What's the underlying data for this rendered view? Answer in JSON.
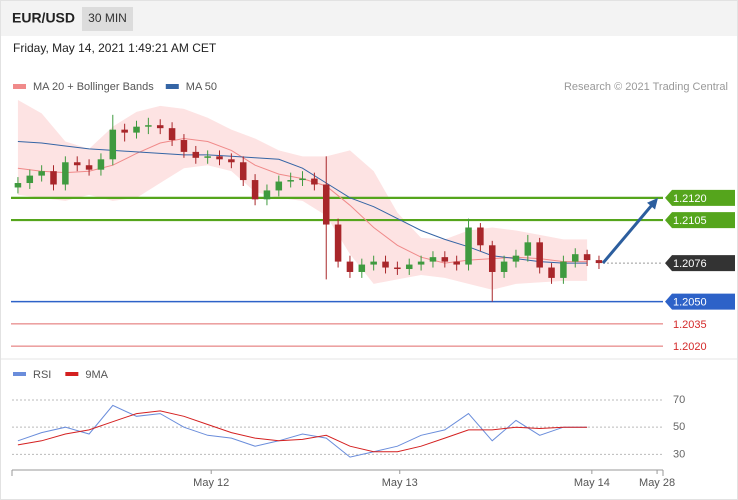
{
  "header": {
    "symbol": "EUR/USD",
    "interval": "30 MIN",
    "timestamp": "Friday, May 14, 2021 1:49:21 AM CET"
  },
  "chart_data": [
    {
      "type": "candlestick",
      "credit": "Research © 2021 Trading Central",
      "up_color": "#3f9a3f",
      "down_color": "#a8262a",
      "xlim": [
        -0.5,
        54.4
      ],
      "ylim": [
        1.2014,
        1.2186
      ],
      "x": [
        0,
        1,
        2,
        3,
        4,
        5,
        6,
        7,
        8,
        9,
        10,
        11,
        12,
        13,
        14,
        15,
        16,
        17,
        18,
        19,
        20,
        21,
        22,
        23,
        24,
        25,
        26,
        27,
        28,
        29,
        30,
        31,
        32,
        33,
        34,
        35,
        36,
        37,
        38,
        39,
        40,
        41,
        42,
        43,
        44,
        45,
        46,
        47,
        48,
        49
      ],
      "open": [
        1.2127,
        1.213,
        1.2135,
        1.2138,
        1.2129,
        1.2144,
        1.2142,
        1.2139,
        1.2146,
        1.2166,
        1.2164,
        1.2168,
        1.2169,
        1.2167,
        1.2159,
        1.2151,
        1.2147,
        1.2148,
        1.2146,
        1.2144,
        1.2132,
        1.2119,
        1.2125,
        1.2131,
        1.2132,
        1.2133,
        1.2129,
        1.2102,
        1.2077,
        1.207,
        1.2075,
        1.2077,
        1.2073,
        1.2072,
        1.2075,
        1.2077,
        1.208,
        1.2077,
        1.2075,
        1.21,
        1.2088,
        1.207,
        1.2077,
        1.2081,
        1.209,
        1.2073,
        1.2066,
        1.2077,
        1.2082,
        1.2078
      ],
      "high": [
        1.2134,
        1.2139,
        1.2142,
        1.2142,
        1.2148,
        1.2148,
        1.2146,
        1.215,
        1.2176,
        1.217,
        1.2172,
        1.2174,
        1.2173,
        1.2171,
        1.2163,
        1.2155,
        1.2152,
        1.2152,
        1.215,
        1.2148,
        1.2136,
        1.2129,
        1.2135,
        1.2137,
        1.2138,
        1.2137,
        1.2148,
        1.2106,
        1.2081,
        1.2079,
        1.2081,
        1.2081,
        1.2077,
        1.2079,
        1.2081,
        1.2084,
        1.2084,
        1.2081,
        1.2106,
        1.2103,
        1.2091,
        1.2081,
        1.2085,
        1.2095,
        1.2093,
        1.2076,
        1.2081,
        1.2086,
        1.2085,
        1.2081
      ],
      "low": [
        1.2123,
        1.2126,
        1.2131,
        1.2125,
        1.2125,
        1.2138,
        1.2135,
        1.2135,
        1.2142,
        1.2158,
        1.216,
        1.2163,
        1.2163,
        1.2155,
        1.2147,
        1.2143,
        1.2143,
        1.2142,
        1.214,
        1.2128,
        1.2115,
        1.2115,
        1.2121,
        1.2127,
        1.2128,
        1.2125,
        1.2065,
        1.2073,
        1.2066,
        1.2066,
        1.2071,
        1.2069,
        1.2068,
        1.2068,
        1.2071,
        1.2073,
        1.2073,
        1.2071,
        1.2071,
        1.2084,
        1.205,
        1.2066,
        1.2073,
        1.2077,
        1.2069,
        1.2062,
        1.2062,
        1.2073,
        1.2074,
        1.2072
      ],
      "close": [
        1.213,
        1.2135,
        1.2138,
        1.2129,
        1.2144,
        1.2142,
        1.2139,
        1.2146,
        1.2166,
        1.2164,
        1.2168,
        1.2169,
        1.2167,
        1.2159,
        1.2151,
        1.2147,
        1.2148,
        1.2146,
        1.2144,
        1.2132,
        1.2119,
        1.2125,
        1.2131,
        1.2132,
        1.2133,
        1.2129,
        1.2102,
        1.2077,
        1.207,
        1.2075,
        1.2077,
        1.2073,
        1.2072,
        1.2075,
        1.2077,
        1.208,
        1.2077,
        1.2075,
        1.21,
        1.2088,
        1.207,
        1.2077,
        1.2081,
        1.209,
        1.2073,
        1.2066,
        1.2077,
        1.2082,
        1.2078,
        1.2076
      ],
      "indicators": [
        {
          "name": "MA 20 + Bollinger Bands",
          "color": "#f08a8a",
          "band_color": "#fde3e3",
          "x": [
            0,
            2,
            4,
            6,
            8,
            10,
            12,
            14,
            16,
            18,
            20,
            22,
            24,
            26,
            28,
            30,
            32,
            34,
            36,
            38,
            40,
            42,
            44,
            46,
            48
          ],
          "values": [
            1.214,
            1.2138,
            1.2137,
            1.2138,
            1.2142,
            1.215,
            1.2157,
            1.216,
            1.2158,
            1.2152,
            1.2142,
            1.2136,
            1.2133,
            1.2128,
            1.2115,
            1.21,
            1.2088,
            1.208,
            1.2076,
            1.2078,
            1.2079,
            1.208,
            1.2079,
            1.2077,
            1.2077
          ],
          "upper": [
            1.2186,
            1.2177,
            1.2158,
            1.2153,
            1.2168,
            1.2178,
            1.2182,
            1.218,
            1.2174,
            1.2166,
            1.216,
            1.2152,
            1.2148,
            1.2148,
            1.2152,
            1.2138,
            1.211,
            1.2093,
            1.2092,
            1.2098,
            1.21,
            1.2098,
            1.2095,
            1.2092,
            1.2092
          ],
          "lower": [
            1.2122,
            1.212,
            1.2118,
            1.2122,
            1.2118,
            1.212,
            1.213,
            1.214,
            1.2142,
            1.2138,
            1.2124,
            1.212,
            1.2118,
            1.2108,
            1.2082,
            1.2062,
            1.2065,
            1.2068,
            1.2066,
            1.2062,
            1.2058,
            1.2062,
            1.2063,
            1.2064,
            1.2064
          ]
        },
        {
          "name": "MA 50",
          "color": "#3565a5",
          "x": [
            0,
            2,
            4,
            6,
            8,
            10,
            12,
            14,
            16,
            18,
            20,
            22,
            24,
            26,
            28,
            30,
            32,
            34,
            36,
            38,
            40,
            42,
            44,
            46,
            48
          ],
          "values": [
            1.2158,
            1.2157,
            1.2155,
            1.2153,
            1.2152,
            1.2151,
            1.215,
            1.2149,
            1.2149,
            1.2148,
            1.2147,
            1.2146,
            1.214,
            1.213,
            1.212,
            1.2114,
            1.2106,
            1.2098,
            1.2092,
            1.2087,
            1.2081,
            1.2079,
            1.2077,
            1.2076,
            1.2076
          ]
        }
      ],
      "levels": [
        {
          "value": 1.212,
          "label": "1.2120",
          "color": "#55a51c",
          "style": "box"
        },
        {
          "value": 1.2105,
          "label": "1.2105",
          "color": "#55a51c",
          "style": "box"
        },
        {
          "value": 1.2076,
          "label": "1.2076",
          "color": "#333333",
          "style": "current"
        },
        {
          "value": 1.205,
          "label": "1.2050",
          "color": "#2d62c8",
          "style": "box"
        },
        {
          "value": 1.2035,
          "label": "1.2035",
          "color": "#d42a2a",
          "style": "text"
        },
        {
          "value": 1.202,
          "label": "1.2020",
          "color": "#d42a2a",
          "style": "text"
        }
      ]
    },
    {
      "type": "line",
      "xlim": [
        -0.5,
        54.4
      ],
      "ylim": [
        20,
        81
      ],
      "yticks": [
        30,
        50,
        70
      ],
      "grid": true,
      "xticks": [
        {
          "value": 16.3,
          "label": "May 12"
        },
        {
          "value": 32.2,
          "label": "May 13"
        },
        {
          "value": 48.4,
          "label": "May 14"
        },
        {
          "value": 53.9,
          "label": "May 28"
        }
      ],
      "series": [
        {
          "name": "RSI",
          "color": "#6a8ddb",
          "x": [
            0,
            2,
            4,
            6,
            8,
            10,
            12,
            14,
            16,
            18,
            20,
            22,
            24,
            26,
            28,
            30,
            32,
            34,
            36,
            38,
            40,
            42,
            44,
            46,
            48
          ],
          "values": [
            40,
            46,
            50,
            45,
            66,
            58,
            60,
            50,
            44,
            42,
            36,
            40,
            45,
            42,
            28,
            32,
            36,
            44,
            48,
            60,
            40,
            55,
            44,
            50,
            50
          ]
        },
        {
          "name": "9MA",
          "color": "#d42020",
          "x": [
            0,
            2,
            4,
            6,
            8,
            10,
            12,
            14,
            16,
            18,
            20,
            22,
            24,
            26,
            28,
            30,
            32,
            34,
            36,
            38,
            40,
            42,
            44,
            46,
            48
          ],
          "values": [
            37,
            40,
            45,
            48,
            54,
            60,
            62,
            58,
            52,
            46,
            42,
            40,
            41,
            44,
            36,
            32,
            32,
            36,
            42,
            48,
            48,
            50,
            49,
            50,
            50
          ]
        }
      ]
    }
  ]
}
